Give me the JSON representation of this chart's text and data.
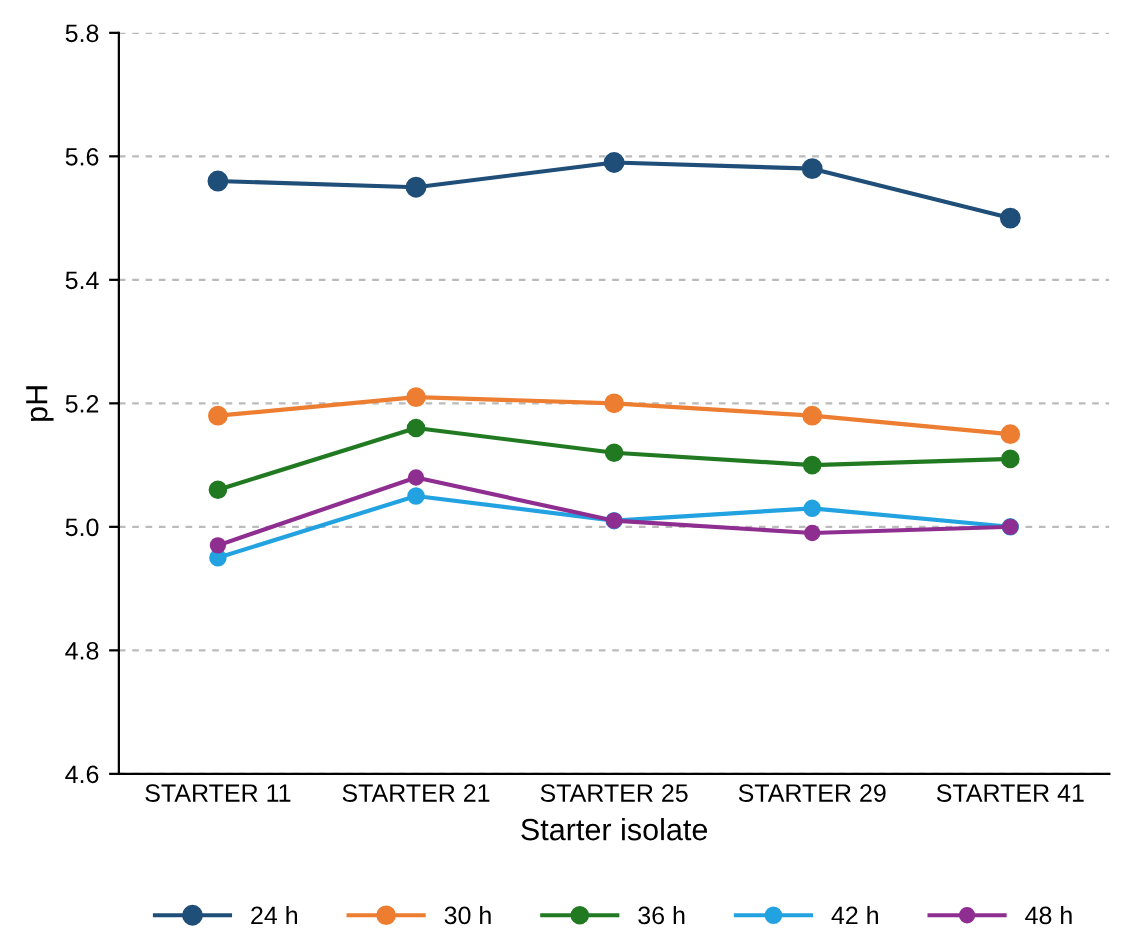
{
  "chart_data": {
    "type": "line",
    "xlabel": "Starter isolate",
    "ylabel": "pH",
    "categories": [
      "STARTER 11",
      "STARTER 21",
      "STARTER 25",
      "STARTER 29",
      "STARTER 41"
    ],
    "series": [
      {
        "name": "24 h",
        "color": "#1f4e79",
        "values": [
          5.56,
          5.55,
          5.59,
          5.58,
          5.5
        ]
      },
      {
        "name": "30 h",
        "color": "#ed7d31",
        "values": [
          5.18,
          5.21,
          5.2,
          5.18,
          5.15
        ]
      },
      {
        "name": "36 h",
        "color": "#217a21",
        "values": [
          5.06,
          5.16,
          5.12,
          5.1,
          5.11
        ]
      },
      {
        "name": "42 h",
        "color": "#22a2e0",
        "values": [
          4.95,
          5.05,
          5.01,
          5.03,
          5.0
        ]
      },
      {
        "name": "48 h",
        "color": "#8f2e91",
        "values": [
          4.97,
          5.08,
          5.01,
          4.99,
          5.0
        ]
      }
    ],
    "ylim": [
      4.6,
      5.8
    ],
    "yticks": [
      4.6,
      4.8,
      {
        "value": 5.0,
        "label": "5.0"
      },
      5.2,
      5.4,
      5.6,
      5.8
    ],
    "grid": "y",
    "legend": "bottom",
    "marker": "circle",
    "line_style": "solid"
  }
}
